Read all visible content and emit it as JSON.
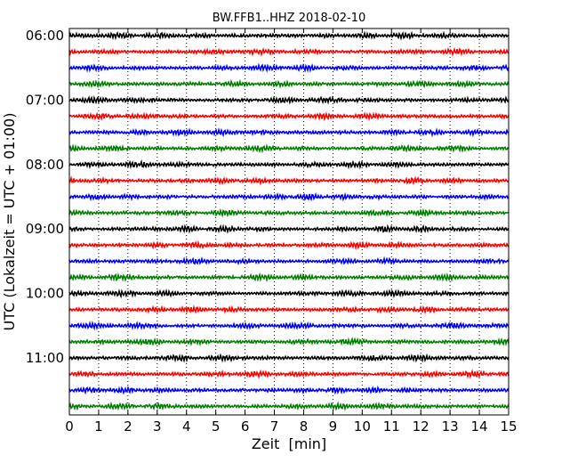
{
  "chart_data": {
    "type": "line",
    "subtype": "seismogram-dayplot",
    "title": "BW.FFB1..HHZ 2018-02-10",
    "xlabel": "Zeit  [min]",
    "ylabel": "UTC (Lokalzeit = UTC + 01:00)",
    "xlim": [
      0,
      15
    ],
    "x_ticks": [
      "0",
      "1",
      "2",
      "3",
      "4",
      "5",
      "6",
      "7",
      "8",
      "9",
      "10",
      "11",
      "12",
      "13",
      "14",
      "15"
    ],
    "y_tick_labels": [
      "06:00",
      "07:00",
      "08:00",
      "09:00",
      "10:00",
      "11:00"
    ],
    "traces_per_hour": 4,
    "minutes_per_trace": 15,
    "trace_start_times": [
      "06:00",
      "06:15",
      "06:30",
      "06:45",
      "07:00",
      "07:15",
      "07:30",
      "07:45",
      "08:00",
      "08:15",
      "08:30",
      "08:45",
      "09:00",
      "09:15",
      "09:30",
      "09:45",
      "10:00",
      "10:15",
      "10:30",
      "10:45",
      "11:00",
      "11:15",
      "11:30",
      "11:45"
    ],
    "trace_colors": [
      "#000000",
      "#ff0000",
      "#0000ff",
      "#008000"
    ],
    "grid": {
      "x": "dotted",
      "y": false
    }
  }
}
